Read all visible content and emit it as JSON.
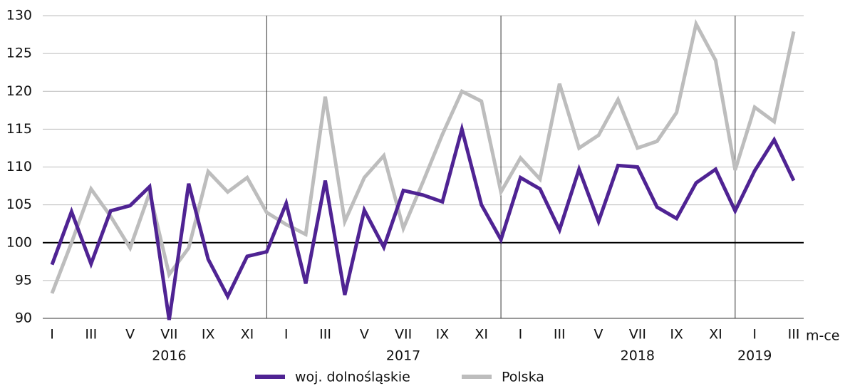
{
  "chart_data": {
    "type": "line",
    "categories": [
      "I",
      null,
      "III",
      null,
      "V",
      null,
      "VII",
      null,
      "IX",
      null,
      "XI",
      null,
      "I",
      null,
      "III",
      null,
      "V",
      null,
      "VII",
      null,
      "IX",
      null,
      "XI",
      null,
      "I",
      null,
      "III",
      null,
      "V",
      null,
      "VII",
      null,
      "IX",
      null,
      "XI",
      null,
      "I",
      null,
      "III"
    ],
    "x_groups": [
      "2016",
      "2017",
      "2018",
      "2019"
    ],
    "x_unit_label": "m-ce",
    "series": [
      {
        "name": "woj. dolnośląskie",
        "color": "#4f2393",
        "values": [
          97.1,
          104.1,
          97.2,
          104.2,
          104.9,
          107.4,
          89.8,
          107.8,
          97.8,
          92.9,
          98.2,
          98.8,
          105.2,
          94.6,
          108.2,
          93.1,
          104.3,
          99.4,
          106.9,
          106.3,
          105.4,
          115.0,
          105.0,
          100.4,
          108.6,
          107.1,
          101.7,
          109.7,
          102.8,
          110.2,
          110.0,
          104.7,
          103.2,
          107.9,
          109.7,
          104.2,
          109.5,
          113.6,
          108.2
        ]
      },
      {
        "name": "Polska",
        "color": "#bdbdbd",
        "values": [
          93.3,
          100.0,
          107.1,
          103.5,
          99.3,
          106.6,
          95.8,
          99.3,
          109.4,
          106.7,
          108.6,
          104.0,
          102.4,
          101.1,
          119.3,
          102.8,
          108.6,
          111.5,
          101.9,
          108.0,
          114.3,
          120.0,
          118.7,
          106.7,
          111.2,
          108.4,
          121.0,
          112.5,
          114.2,
          118.9,
          112.5,
          113.4,
          117.2,
          128.9,
          124.1,
          109.6,
          117.9,
          116.0,
          127.9
        ]
      }
    ],
    "ylim": [
      90,
      130
    ],
    "yticks": [
      90,
      95,
      100,
      105,
      110,
      115,
      120,
      125,
      130
    ],
    "reference_line": 100,
    "grid": true,
    "legend": "bottom"
  }
}
